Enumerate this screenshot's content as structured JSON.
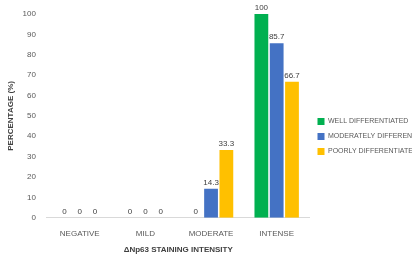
{
  "chart_data": {
    "type": "bar",
    "categories": [
      "NEGATIVE",
      "MILD",
      "MODERATE",
      "INTENSE"
    ],
    "series": [
      {
        "name": "WELL DIFFERENTIATED",
        "color": "#00b050",
        "values": [
          0,
          0,
          0,
          100
        ]
      },
      {
        "name": "MODERATELY DIFFERENTIATED",
        "color": "#4472c4",
        "values": [
          0,
          0,
          14.3,
          85.7
        ]
      },
      {
        "name": "POORLY DIFFERENTIATED",
        "color": "#ffc000",
        "values": [
          0,
          0,
          33.3,
          66.7
        ]
      }
    ],
    "x_label": "ΔNp63 STAINING INTENSITY",
    "y_label": "PERCENTAGE (%)",
    "ylim": [
      0,
      100
    ],
    "yticks": [
      0,
      10,
      20,
      30,
      40,
      50,
      60,
      70,
      80,
      90,
      100
    ],
    "grid": false,
    "legend": "right",
    "data_labels": true
  }
}
